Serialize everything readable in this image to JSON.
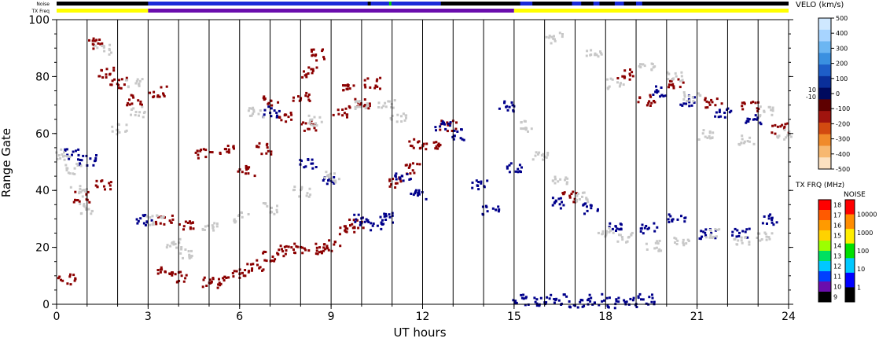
{
  "chart_data": {
    "type": "heatmap",
    "title": "",
    "xlabel": "UT hours",
    "ylabel": "Range Gate",
    "xlim": [
      0,
      24
    ],
    "ylim": [
      0,
      100
    ],
    "x_ticks": [
      "0",
      "3",
      "6",
      "9",
      "12",
      "15",
      "18",
      "21",
      "24"
    ],
    "y_ticks": [
      "0",
      "20",
      "40",
      "60",
      "80",
      "100"
    ],
    "top_strips": [
      {
        "label": "Noise"
      },
      {
        "label": "TX Freq",
        "segments": [
          {
            "start": 0,
            "end": 3,
            "color": "#ffff00"
          },
          {
            "start": 3,
            "end": 15,
            "color": "#6a0dad"
          },
          {
            "start": 15,
            "end": 24,
            "color": "#ffff00"
          }
        ]
      }
    ],
    "velocity_scale": {
      "title": "VELO (km/s)",
      "ticks": [
        "500",
        "400",
        "300",
        "200",
        "100",
        "0",
        "-100",
        "-200",
        "-300",
        "-400",
        "-500"
      ],
      "aux_ticks": [
        "10",
        "-10"
      ],
      "colors": [
        "#cfe8ff",
        "#a7d4ff",
        "#6cb6f2",
        "#3a90e0",
        "#1e5ec8",
        "#0a2f9a",
        "#000a5e",
        "#5e0000",
        "#a0140e",
        "#d24a10",
        "#f08a2a",
        "#f7b870",
        "#fce1c0"
      ]
    },
    "freq_scale": {
      "title": "TX FRQ (MHz)",
      "ticks": [
        "18",
        "17",
        "16",
        "15",
        "14",
        "13",
        "12",
        "11",
        "10",
        "9"
      ],
      "colors": [
        "#ff0000",
        "#ff5a00",
        "#ff9a00",
        "#ffd200",
        "#9cff00",
        "#00e060",
        "#00c8ff",
        "#0040ff",
        "#6a0dad",
        "#000000"
      ]
    },
    "noise_scale": {
      "title": "NOISE",
      "ticks": [
        "10000",
        "1000",
        "100",
        "10",
        "1"
      ],
      "colors": [
        "#ff0000",
        "#ff8c00",
        "#ffee00",
        "#00e000",
        "#00c8ff",
        "#0000ff",
        "#000000"
      ]
    },
    "series": [
      {
        "color": "#8b0000",
        "points": [
          [
            5.0,
            8
          ],
          [
            5.5,
            9
          ],
          [
            6.0,
            11
          ],
          [
            6.5,
            14
          ],
          [
            7.0,
            17
          ],
          [
            7.5,
            19
          ],
          [
            8.0,
            20
          ],
          [
            8.5,
            20
          ],
          [
            9.0,
            21
          ],
          [
            9.5,
            26
          ],
          [
            9.8,
            29
          ],
          [
            3.5,
            12
          ],
          [
            4.0,
            10
          ],
          [
            6.2,
            47
          ],
          [
            6.8,
            55
          ],
          [
            7.0,
            72
          ],
          [
            7.5,
            66
          ],
          [
            8.0,
            73
          ],
          [
            8.3,
            82
          ],
          [
            8.6,
            88
          ],
          [
            8.2,
            63
          ],
          [
            9.3,
            68
          ],
          [
            9.6,
            76
          ],
          [
            10.0,
            71
          ],
          [
            10.3,
            78
          ],
          [
            11.1,
            43
          ],
          [
            11.6,
            48
          ],
          [
            11.8,
            57
          ],
          [
            12.3,
            56
          ],
          [
            12.8,
            63
          ],
          [
            1.3,
            92
          ],
          [
            1.6,
            82
          ],
          [
            2.0,
            78
          ],
          [
            2.5,
            72
          ],
          [
            3.3,
            75
          ],
          [
            0.3,
            9
          ],
          [
            0.8,
            38
          ],
          [
            1.5,
            42
          ],
          [
            3.5,
            30
          ],
          [
            4.2,
            28
          ],
          [
            4.8,
            53
          ],
          [
            5.5,
            55
          ],
          [
            16.8,
            38
          ],
          [
            18.6,
            81
          ],
          [
            19.3,
            72
          ],
          [
            20.3,
            78
          ],
          [
            21.5,
            71
          ],
          [
            22.7,
            70
          ],
          [
            23.7,
            62
          ]
        ]
      },
      {
        "color": "#00008b",
        "points": [
          [
            10.0,
            30
          ],
          [
            10.4,
            28
          ],
          [
            10.8,
            31
          ],
          [
            11.3,
            45
          ],
          [
            11.8,
            39
          ],
          [
            12.6,
            63
          ],
          [
            13.2,
            60
          ],
          [
            13.8,
            42
          ],
          [
            14.2,
            33
          ],
          [
            14.7,
            70
          ],
          [
            15.0,
            48
          ],
          [
            15.2,
            2
          ],
          [
            15.8,
            1
          ],
          [
            16.4,
            2
          ],
          [
            17.0,
            1
          ],
          [
            17.6,
            2
          ],
          [
            18.2,
            1
          ],
          [
            18.8,
            1
          ],
          [
            19.3,
            2
          ],
          [
            16.4,
            36
          ],
          [
            17.5,
            34
          ],
          [
            18.3,
            28
          ],
          [
            19.4,
            27
          ],
          [
            20.3,
            30
          ],
          [
            21.3,
            25
          ],
          [
            22.4,
            25
          ],
          [
            23.3,
            30
          ],
          [
            8.2,
            50
          ],
          [
            8.8,
            44
          ],
          [
            7.0,
            68
          ],
          [
            0.5,
            53
          ],
          [
            1.0,
            51
          ],
          [
            2.8,
            30
          ],
          [
            19.8,
            75
          ],
          [
            20.7,
            72
          ],
          [
            21.8,
            68
          ],
          [
            22.8,
            65
          ]
        ]
      },
      {
        "color": "#c8c8c8",
        "points": [
          [
            0.2,
            53
          ],
          [
            0.5,
            48
          ],
          [
            0.7,
            40
          ],
          [
            1.0,
            34
          ],
          [
            2.0,
            62
          ],
          [
            2.6,
            68
          ],
          [
            3.2,
            30
          ],
          [
            3.8,
            22
          ],
          [
            4.3,
            18
          ],
          [
            5.0,
            28
          ],
          [
            6.0,
            31
          ],
          [
            7.0,
            34
          ],
          [
            8.0,
            40
          ],
          [
            9.0,
            45
          ],
          [
            10.0,
            70
          ],
          [
            10.8,
            71
          ],
          [
            11.2,
            66
          ],
          [
            15.4,
            63
          ],
          [
            15.8,
            52
          ],
          [
            16.5,
            44
          ],
          [
            17.2,
            38
          ],
          [
            18.0,
            26
          ],
          [
            18.6,
            24
          ],
          [
            19.5,
            21
          ],
          [
            20.5,
            23
          ],
          [
            21.5,
            25
          ],
          [
            22.4,
            23
          ],
          [
            23.2,
            24
          ],
          [
            16.3,
            94
          ],
          [
            17.6,
            88
          ],
          [
            18.3,
            78
          ],
          [
            19.3,
            84
          ],
          [
            20.2,
            80
          ],
          [
            20.8,
            73
          ],
          [
            21.2,
            60
          ],
          [
            22.6,
            58
          ],
          [
            23.3,
            68
          ],
          [
            23.8,
            60
          ],
          [
            1.5,
            90
          ],
          [
            2.5,
            78
          ],
          [
            6.5,
            68
          ],
          [
            8.5,
            65
          ]
        ]
      }
    ],
    "grid": false,
    "legend": "right"
  }
}
